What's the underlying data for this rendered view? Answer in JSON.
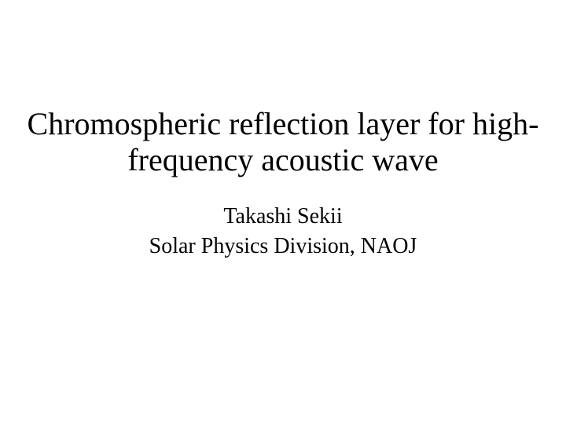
{
  "slide": {
    "title": "Chromospheric reflection layer for high-frequency acoustic wave",
    "author": "Takashi Sekii",
    "affiliation": "Solar Physics Division, NAOJ",
    "title_fontsize": 40,
    "subtitle_fontsize": 28,
    "background_color": "#ffffff",
    "text_color": "#000000",
    "font_family": "Times New Roman"
  }
}
